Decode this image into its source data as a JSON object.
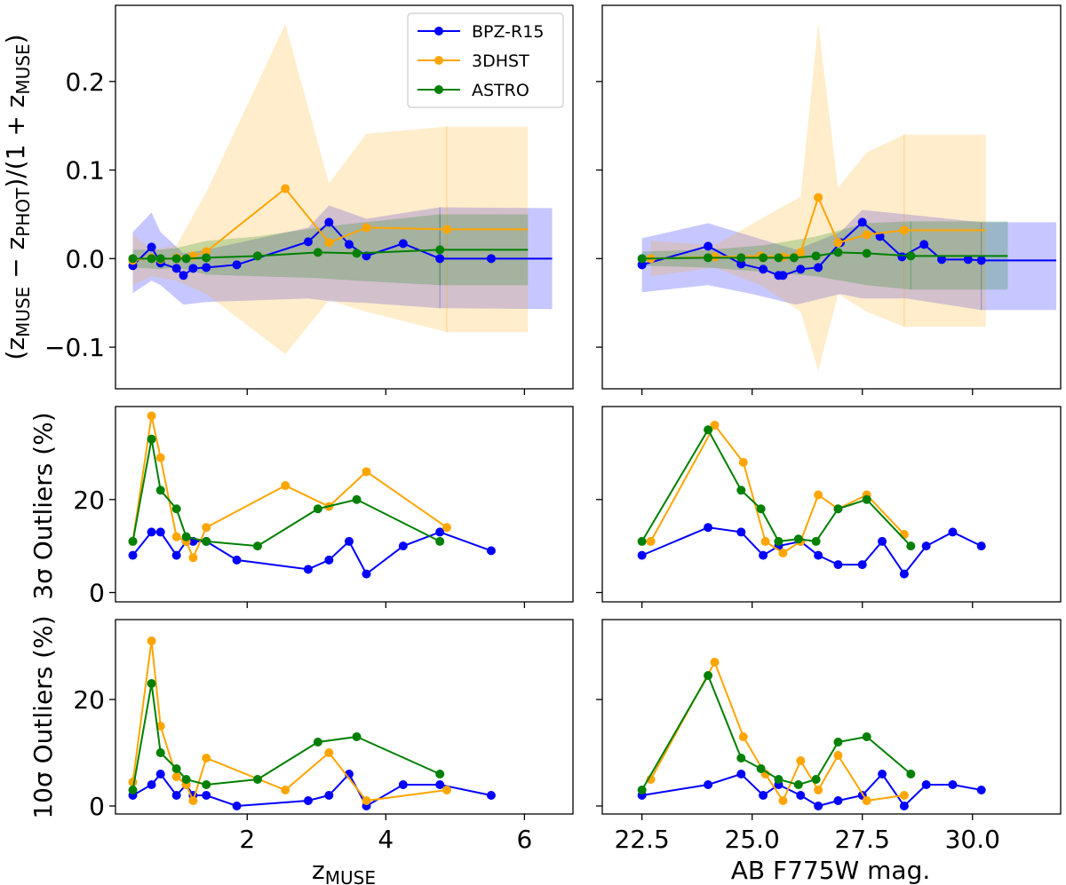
{
  "colors": {
    "bpz": "#0000ff",
    "dhst": "#ffa500",
    "astro": "#008000"
  },
  "legend": {
    "bpz": "BPZ-R15",
    "dhst": "3DHST",
    "astro": "ASTRO"
  },
  "labels": {
    "ylabel_main": "(zMUSE − zPHOT)/(1 + zMUSE)",
    "ylabel_3sigma": "3σ Outliers (%)",
    "ylabel_10sigma": "10σ Outliers (%)",
    "xlabel_left": "zMUSE",
    "xlabel_right": "AB F775W mag."
  },
  "chart_data": [
    {
      "panel": "top-left",
      "type": "line",
      "xlim": [
        0.1,
        6.7
      ],
      "ylim": [
        -0.147,
        0.286
      ],
      "yticks": [
        -0.1,
        0.0,
        0.1,
        0.2
      ],
      "ytick_labels": [
        "−0.1",
        "0.0",
        "0.1",
        "0.2"
      ],
      "xticks": [
        2,
        4,
        6
      ],
      "series": [
        {
          "name": "BPZ-R15",
          "x": [
            0.35,
            0.62,
            0.75,
            0.98,
            1.08,
            1.22,
            1.41,
            1.85,
            2.88,
            3.18,
            3.47,
            3.72,
            4.25,
            4.78,
            5.52
          ],
          "y": [
            -0.008,
            0.013,
            -0.005,
            -0.011,
            -0.019,
            -0.011,
            -0.01,
            -0.007,
            0.019,
            0.041,
            0.016,
            0.003,
            0.017,
            0.0,
            0.0
          ],
          "line_to": 6.4,
          "band": {
            "x": [
              0.35,
              0.62,
              0.75,
              1.08,
              1.41,
              2.88,
              3.18,
              3.72,
              4.78,
              6.4
            ],
            "lo": [
              -0.039,
              -0.025,
              -0.03,
              -0.052,
              -0.049,
              -0.045,
              -0.048,
              -0.05,
              -0.056,
              -0.057
            ],
            "hi": [
              0.03,
              0.052,
              0.03,
              0.006,
              0.01,
              0.035,
              0.06,
              0.045,
              0.058,
              0.057
            ]
          }
        },
        {
          "name": "3DHST",
          "x": [
            0.35,
            0.62,
            0.75,
            0.98,
            1.22,
            1.41,
            2.55,
            3.18,
            3.72,
            4.88
          ],
          "y": [
            -0.002,
            0.001,
            -0.001,
            0.001,
            0.003,
            0.008,
            0.079,
            0.018,
            0.035,
            0.033
          ],
          "line_to": 6.05,
          "band": {
            "x": [
              0.35,
              0.62,
              0.98,
              1.41,
              2.55,
              3.18,
              3.72,
              4.88,
              6.05
            ],
            "lo": [
              -0.03,
              -0.02,
              -0.025,
              -0.04,
              -0.108,
              -0.047,
              -0.06,
              -0.083,
              -0.083
            ],
            "hi": [
              0.027,
              0.01,
              0.015,
              0.075,
              0.265,
              0.085,
              0.141,
              0.149,
              0.149
            ]
          }
        },
        {
          "name": "ASTRO",
          "x": [
            0.35,
            0.62,
            0.75,
            0.98,
            1.12,
            1.41,
            2.15,
            3.02,
            3.58,
            4.78
          ],
          "y": [
            0.0,
            0.0,
            0.0,
            0.0,
            0.0,
            0.001,
            0.003,
            0.007,
            0.006,
            0.01
          ],
          "line_to": 6.05,
          "band": {
            "x": [
              0.35,
              0.75,
              0.98,
              1.41,
              2.15,
              3.02,
              3.58,
              4.78,
              6.05
            ],
            "lo": [
              -0.01,
              -0.012,
              -0.01,
              -0.018,
              -0.02,
              -0.022,
              -0.025,
              -0.03,
              -0.03
            ],
            "hi": [
              0.01,
              0.01,
              0.012,
              0.02,
              0.025,
              0.035,
              0.04,
              0.05,
              0.05
            ]
          }
        }
      ]
    },
    {
      "panel": "top-right",
      "type": "line",
      "xlim": [
        21.6,
        32.0
      ],
      "ylim": [
        -0.147,
        0.286
      ],
      "xticks": [
        22.5,
        25.0,
        27.5,
        30.0
      ],
      "series": [
        {
          "name": "BPZ-R15",
          "x": [
            22.5,
            24.0,
            24.75,
            25.25,
            25.6,
            25.7,
            26.1,
            26.5,
            27.0,
            27.5,
            27.9,
            28.4,
            28.9,
            29.3,
            29.9,
            30.2
          ],
          "y": [
            -0.007,
            0.014,
            -0.006,
            -0.012,
            -0.019,
            -0.019,
            -0.012,
            -0.01,
            0.018,
            0.041,
            0.025,
            0.002,
            0.016,
            -0.001,
            -0.001,
            -0.002
          ],
          "line_to": 31.9,
          "band": {
            "x": [
              22.5,
              24.0,
              25.0,
              26.0,
              27.0,
              27.5,
              28.5,
              30.2,
              31.9
            ],
            "lo": [
              -0.038,
              -0.03,
              -0.04,
              -0.052,
              -0.04,
              -0.045,
              -0.045,
              -0.058,
              -0.058
            ],
            "hi": [
              0.023,
              0.04,
              0.025,
              0.01,
              0.03,
              0.055,
              0.05,
              0.041,
              0.041
            ]
          }
        },
        {
          "name": "3DHST",
          "x": [
            22.7,
            24.15,
            25.2,
            25.7,
            26.1,
            26.5,
            26.95,
            27.6,
            28.45
          ],
          "y": [
            0.0,
            0.002,
            0.003,
            0.002,
            0.007,
            0.069,
            0.018,
            0.027,
            0.032
          ],
          "line_to": 30.3,
          "band": {
            "x": [
              22.7,
              24.15,
              25.2,
              26.1,
              26.5,
              26.95,
              27.6,
              28.45,
              30.3
            ],
            "lo": [
              -0.02,
              -0.01,
              -0.03,
              -0.06,
              -0.127,
              -0.04,
              -0.06,
              -0.077,
              -0.077
            ],
            "hi": [
              0.02,
              0.015,
              0.045,
              0.07,
              0.266,
              0.08,
              0.12,
              0.14,
              0.14
            ]
          }
        },
        {
          "name": "ASTRO",
          "x": [
            22.5,
            24.0,
            24.75,
            25.25,
            25.6,
            25.95,
            26.45,
            26.95,
            27.6,
            28.6
          ],
          "y": [
            0.0,
            0.001,
            0.001,
            0.001,
            0.001,
            0.001,
            0.003,
            0.007,
            0.006,
            0.003
          ],
          "line_to": 30.8,
          "band": {
            "x": [
              22.5,
              24.0,
              25.25,
              26.45,
              27.6,
              28.6,
              30.8
            ],
            "lo": [
              -0.008,
              -0.01,
              -0.015,
              -0.02,
              -0.03,
              -0.035,
              -0.035
            ],
            "hi": [
              0.008,
              0.01,
              0.015,
              0.025,
              0.04,
              0.042,
              0.042
            ]
          }
        }
      ]
    },
    {
      "panel": "mid-left",
      "type": "line",
      "xlim": [
        0.1,
        6.7
      ],
      "ylim": [
        -2,
        40
      ],
      "yticks": [
        0,
        20
      ],
      "ytick_labels": [
        "0",
        "20"
      ],
      "xticks": [
        2,
        4,
        6
      ],
      "series": [
        {
          "name": "BPZ-R15",
          "x": [
            0.35,
            0.62,
            0.75,
            0.98,
            1.12,
            1.22,
            1.41,
            1.85,
            2.88,
            3.18,
            3.47,
            3.72,
            4.25,
            4.78,
            5.52
          ],
          "y": [
            8,
            13,
            13,
            8,
            11,
            11,
            11,
            7,
            5,
            7,
            11,
            4,
            10,
            13,
            9
          ]
        },
        {
          "name": "3DHST",
          "x": [
            0.35,
            0.62,
            0.75,
            0.98,
            1.12,
            1.22,
            1.41,
            2.55,
            3.18,
            3.72,
            4.88
          ],
          "y": [
            11,
            38,
            29,
            12,
            11,
            7.5,
            14,
            23,
            18.5,
            26,
            14
          ]
        },
        {
          "name": "ASTRO",
          "x": [
            0.35,
            0.62,
            0.75,
            0.98,
            1.12,
            1.41,
            2.15,
            3.02,
            3.58,
            4.78
          ],
          "y": [
            11,
            33,
            22,
            18,
            12,
            11,
            10,
            18,
            20,
            11
          ]
        }
      ]
    },
    {
      "panel": "mid-right",
      "type": "line",
      "xlim": [
        21.6,
        32.0
      ],
      "ylim": [
        -2,
        40
      ],
      "xticks": [
        22.5,
        25.0,
        27.5,
        30.0
      ],
      "series": [
        {
          "name": "BPZ-R15",
          "x": [
            22.5,
            24.0,
            24.75,
            25.25,
            25.6,
            26.1,
            26.5,
            26.95,
            27.5,
            27.95,
            28.45,
            28.95,
            29.55,
            30.2
          ],
          "y": [
            8,
            14,
            13,
            8,
            10,
            11,
            8,
            6,
            6,
            11,
            4,
            10,
            13,
            10
          ]
        },
        {
          "name": "3DHST",
          "x": [
            22.7,
            24.15,
            24.8,
            25.3,
            25.7,
            26.1,
            26.5,
            26.95,
            27.6,
            28.45
          ],
          "y": [
            11,
            36,
            28,
            11,
            8.5,
            11,
            21,
            18,
            21,
            12.5
          ]
        },
        {
          "name": "ASTRO",
          "x": [
            22.5,
            24.0,
            24.75,
            25.2,
            25.6,
            26.05,
            26.45,
            26.95,
            27.6,
            28.6
          ],
          "y": [
            11,
            35,
            22,
            18,
            11,
            11.5,
            11,
            18,
            20,
            10
          ]
        }
      ]
    },
    {
      "panel": "bot-left",
      "type": "line",
      "xlim": [
        0.1,
        6.7
      ],
      "ylim": [
        -1.5,
        35
      ],
      "yticks": [
        0,
        20
      ],
      "ytick_labels": [
        "0",
        "20"
      ],
      "xticks": [
        2,
        4,
        6
      ],
      "xtick_labels": [
        "2",
        "4",
        "6"
      ],
      "series": [
        {
          "name": "BPZ-R15",
          "x": [
            0.35,
            0.62,
            0.75,
            0.98,
            1.12,
            1.22,
            1.41,
            1.85,
            2.88,
            3.18,
            3.47,
            3.72,
            4.25,
            4.78,
            5.52
          ],
          "y": [
            2,
            4,
            6,
            2,
            4,
            2,
            2,
            0,
            1,
            2,
            6,
            0,
            4,
            4,
            2
          ]
        },
        {
          "name": "3DHST",
          "x": [
            0.35,
            0.62,
            0.75,
            0.98,
            1.12,
            1.22,
            1.41,
            2.55,
            3.18,
            3.72,
            4.88
          ],
          "y": [
            4.5,
            31,
            15,
            5.5,
            4,
            1,
            9,
            3,
            10,
            1,
            3
          ]
        },
        {
          "name": "ASTRO",
          "x": [
            0.35,
            0.62,
            0.75,
            0.98,
            1.12,
            1.41,
            2.15,
            3.02,
            3.58,
            4.78
          ],
          "y": [
            3,
            23,
            10,
            7,
            5,
            4,
            5,
            12,
            13,
            6
          ]
        }
      ]
    },
    {
      "panel": "bot-right",
      "type": "line",
      "xlim": [
        21.6,
        32.0
      ],
      "ylim": [
        -1.5,
        35
      ],
      "xticks": [
        22.5,
        25.0,
        27.5,
        30.0
      ],
      "xtick_labels": [
        "22.5",
        "25.0",
        "27.5",
        "30.0"
      ],
      "series": [
        {
          "name": "BPZ-R15",
          "x": [
            22.5,
            24.0,
            24.75,
            25.25,
            25.6,
            26.1,
            26.5,
            26.95,
            27.5,
            27.95,
            28.45,
            28.95,
            29.55,
            30.2
          ],
          "y": [
            2,
            4,
            6,
            2,
            4,
            2,
            0,
            1,
            2,
            6,
            0,
            4,
            4,
            3
          ]
        },
        {
          "name": "3DHST",
          "x": [
            22.7,
            24.15,
            24.8,
            25.3,
            25.7,
            26.1,
            26.5,
            26.95,
            27.6,
            28.45
          ],
          "y": [
            5,
            27,
            13,
            6,
            1,
            8.5,
            3,
            9.5,
            1,
            2
          ]
        },
        {
          "name": "ASTRO",
          "x": [
            22.5,
            24.0,
            24.75,
            25.2,
            25.6,
            26.05,
            26.45,
            26.95,
            27.6,
            28.6
          ],
          "y": [
            3,
            24.5,
            9,
            7,
            5,
            4,
            5,
            12,
            13,
            6
          ]
        }
      ]
    }
  ]
}
